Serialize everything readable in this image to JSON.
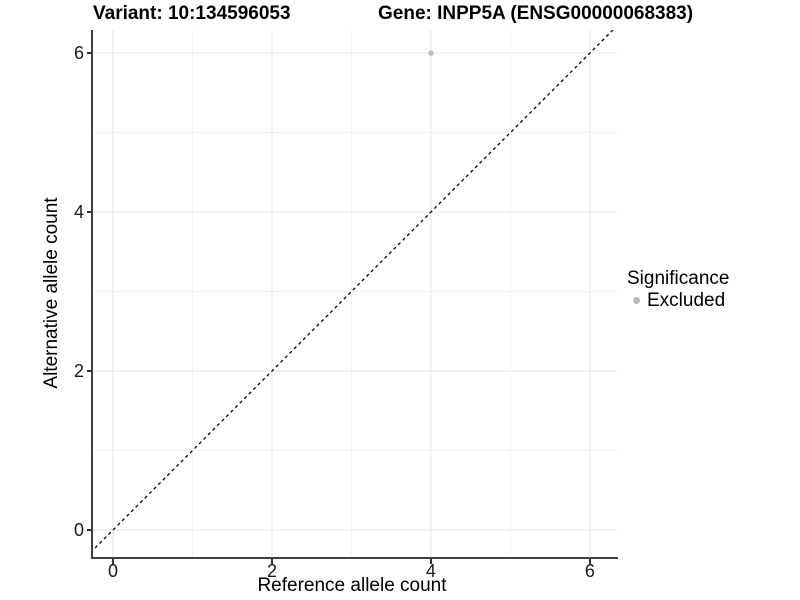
{
  "titles": {
    "variant": "Variant: 10:134596053",
    "gene": "Gene: INPP5A (ENSG00000068383)"
  },
  "chart_data": {
    "type": "scatter",
    "title": "Variant: 10:134596053   Gene: INPP5A (ENSG00000068383)",
    "xlabel": "Reference allele count",
    "ylabel": "Alternative allele count",
    "xlim": [
      -0.252,
      6.341
    ],
    "ylim": [
      -0.34,
      6.29
    ],
    "x_ticks": [
      0,
      2,
      4,
      6
    ],
    "y_ticks": [
      0,
      2,
      4,
      6
    ],
    "x_minor_ticks": [
      1,
      3,
      5
    ],
    "y_minor_ticks": [
      1,
      3,
      5
    ],
    "grid": true,
    "points": [
      {
        "x": 4,
        "y": 6,
        "series": "Excluded",
        "color": "#bebebe"
      }
    ],
    "abline": {
      "slope": 1,
      "intercept": 0,
      "style": "dashed",
      "color": "#000000"
    },
    "legend": {
      "title": "Significance",
      "position": "right",
      "items": [
        {
          "label": "Excluded",
          "color": "#b8b8b8"
        }
      ]
    },
    "colors": {
      "major_grid": "#e9e9e9",
      "minor_grid": "#f2f2f2",
      "axis_line": "#404040",
      "point_excluded": "#bebebe"
    }
  }
}
